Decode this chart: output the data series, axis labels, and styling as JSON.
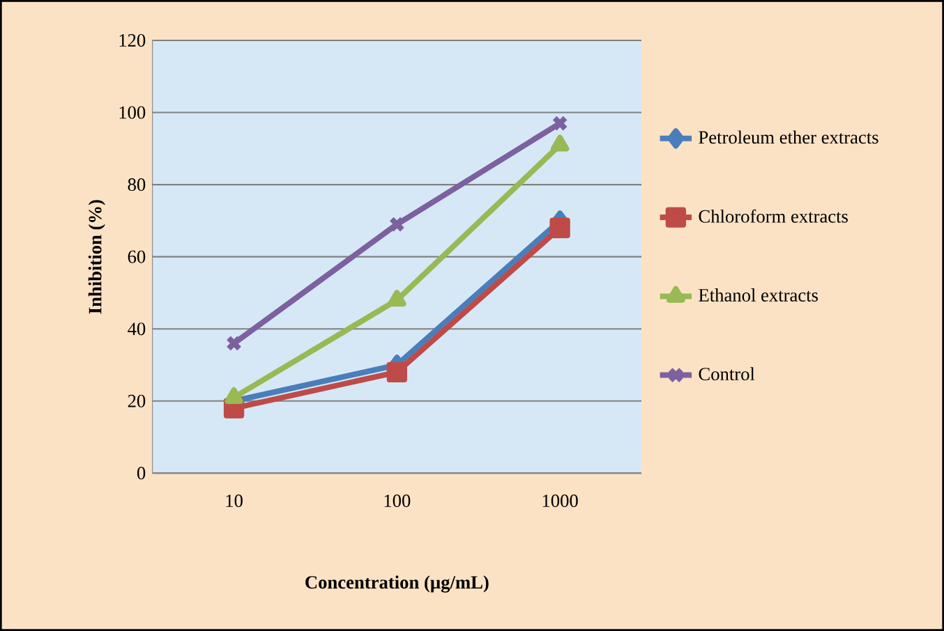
{
  "chart_data": {
    "type": "line",
    "xlabel": "Concentration (µg/mL)",
    "ylabel": "Inhibition (%)",
    "categories": [
      "10",
      "100",
      "1000"
    ],
    "series": [
      {
        "name": "Petroleum ether extracts",
        "color": "#4a7ebb",
        "marker": "diamond",
        "values": [
          20,
          30,
          70
        ]
      },
      {
        "name": "Chloroform extracts",
        "color": "#be4b48",
        "marker": "square",
        "values": [
          18,
          28,
          68
        ]
      },
      {
        "name": "Ethanol extracts",
        "color": "#98b954",
        "marker": "triangle",
        "values": [
          21,
          48,
          91
        ]
      },
      {
        "name": "Control",
        "color": "#7d60a0",
        "marker": "cross",
        "values": [
          36,
          69,
          97
        ]
      }
    ],
    "ylim": [
      0,
      120
    ],
    "yticks": [
      0,
      20,
      40,
      60,
      80,
      100,
      120
    ],
    "grid": "y",
    "legend": "right",
    "line_style": "solid"
  }
}
